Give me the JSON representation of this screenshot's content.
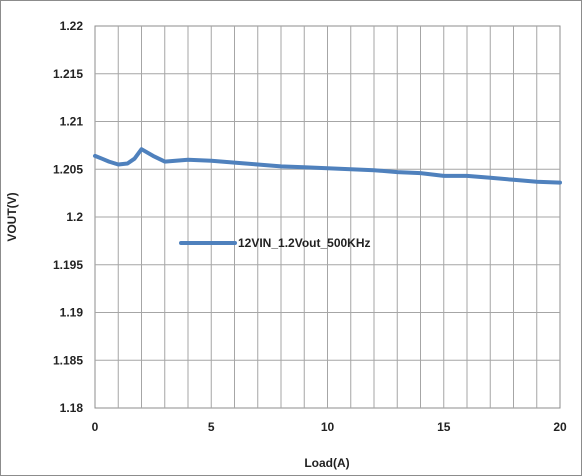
{
  "chart_data": {
    "type": "line",
    "title": "",
    "xlabel": "Load(A)",
    "ylabel": "VOUT(V)",
    "xlim": [
      0,
      20
    ],
    "ylim": [
      1.18,
      1.22
    ],
    "x_ticks": [
      0,
      5,
      10,
      15,
      20
    ],
    "y_ticks": [
      1.18,
      1.185,
      1.19,
      1.195,
      1.2,
      1.205,
      1.21,
      1.215,
      1.22
    ],
    "y_tick_labels": [
      "1.18",
      "1.185",
      "1.19",
      "1.195",
      "1.2",
      "1.205",
      "1.21",
      "1.215",
      "1.22"
    ],
    "x_tick_labels": [
      "0",
      "5",
      "10",
      "15",
      "20"
    ],
    "grid": true,
    "legend_position": "center-left",
    "series": [
      {
        "name": "12VIN_1.2Vout_500KHz",
        "color": "#4F81BD",
        "x": [
          0,
          0.3,
          0.6,
          1.0,
          1.4,
          1.7,
          2.0,
          2.5,
          3.0,
          4.0,
          5.0,
          6.0,
          7.0,
          8.0,
          9.0,
          10.0,
          11.0,
          12.0,
          13.0,
          14.0,
          15.0,
          16.0,
          17.0,
          18.0,
          19.0,
          20.0
        ],
        "y": [
          1.2064,
          1.2061,
          1.2058,
          1.2055,
          1.2056,
          1.2061,
          1.2071,
          1.2064,
          1.2058,
          1.206,
          1.2059,
          1.2057,
          1.2055,
          1.2053,
          1.2052,
          1.2051,
          1.205,
          1.2049,
          1.2047,
          1.2046,
          1.2043,
          1.2043,
          1.2041,
          1.2039,
          1.2037,
          1.2036
        ]
      }
    ]
  }
}
